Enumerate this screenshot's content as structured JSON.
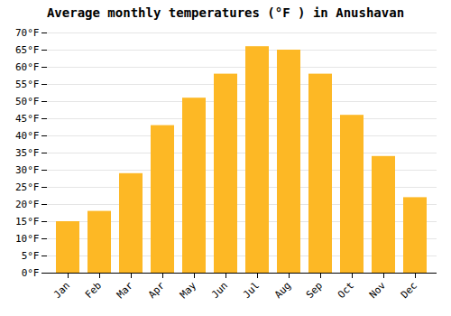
{
  "chart_data": {
    "type": "bar",
    "title": "Average monthly temperatures (°F ) in Anushavan",
    "categories": [
      "Jan",
      "Feb",
      "Mar",
      "Apr",
      "May",
      "Jun",
      "Jul",
      "Aug",
      "Sep",
      "Oct",
      "Nov",
      "Dec"
    ],
    "values": [
      15,
      18,
      29,
      43,
      51,
      58,
      66,
      65,
      58,
      46,
      34,
      22
    ],
    "color": "#FDB825",
    "ylim": [
      0,
      70
    ],
    "yticks": [
      {
        "value": 0,
        "label": "0°F"
      },
      {
        "value": 5,
        "label": "5°F"
      },
      {
        "value": 10,
        "label": "10°F"
      },
      {
        "value": 15,
        "label": "15°F"
      },
      {
        "value": 20,
        "label": "20°F"
      },
      {
        "value": 25,
        "label": "25°F"
      },
      {
        "value": 30,
        "label": "30°F"
      },
      {
        "value": 35,
        "label": "35°F"
      },
      {
        "value": 40,
        "label": "40°F"
      },
      {
        "value": 45,
        "label": "45°F"
      },
      {
        "value": 50,
        "label": "50°F"
      },
      {
        "value": 55,
        "label": "55°F"
      },
      {
        "value": 60,
        "label": "60°F"
      },
      {
        "value": 65,
        "label": "65°F"
      },
      {
        "value": 70,
        "label": "70°F"
      }
    ],
    "grid": true
  }
}
